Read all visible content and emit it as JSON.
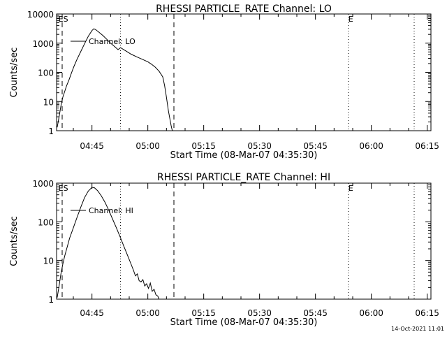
{
  "colors": {
    "background": "#ffffff",
    "ink": "#000000"
  },
  "footer": {
    "timestamp": "14-Oct-2021 11:01"
  },
  "chart_data": [
    {
      "type": "line",
      "title": "RHESSI PARTICLE_RATE Channel: LO",
      "xlabel": "Start Time (08-Mar-07 04:35:30)",
      "ylabel": "Counts/sec",
      "xlim": [
        "04:35:30",
        "06:16:00"
      ],
      "y_scale": "log",
      "ylim": [
        1,
        10000
      ],
      "x_ticks": [
        "04:45",
        "05:00",
        "05:15",
        "05:30",
        "05:45",
        "06:00",
        "06:15"
      ],
      "y_ticks": [
        "1",
        "10",
        "100",
        "1000",
        "10000"
      ],
      "grid": false,
      "legend": "top-left",
      "markers": {
        "dashed": [
          "04:37:00",
          "05:07:00"
        ],
        "dotted": [
          "04:52:40",
          "05:53:50",
          "06:11:30"
        ],
        "labels": [
          {
            "text": "ES",
            "time": "04:36:00"
          },
          {
            "text": "E",
            "time": "05:53:50"
          }
        ]
      },
      "series": [
        {
          "name": "Channel: LO",
          "x": [
            "04:35:40",
            "04:36:10",
            "04:36:40",
            "04:37:10",
            "04:37:40",
            "04:38:10",
            "04:38:50",
            "04:39:30",
            "04:40:10",
            "04:41:00",
            "04:42:00",
            "04:43:00",
            "04:44:00",
            "04:45:00",
            "04:45:30",
            "04:46:00",
            "04:47:00",
            "04:48:00",
            "04:49:00",
            "04:50:00",
            "04:51:00",
            "04:52:00",
            "04:52:40",
            "04:54:00",
            "04:55:30",
            "04:57:00",
            "04:58:30",
            "05:00:00",
            "05:01:00",
            "05:02:00",
            "05:03:00",
            "05:04:00",
            "05:04:30",
            "05:05:00",
            "05:05:30",
            "05:06:00",
            "05:06:15",
            "05:06:30",
            "05:06:40"
          ],
          "y": [
            1.3,
            3,
            7,
            14,
            22,
            34,
            55,
            95,
            160,
            280,
            520,
            950,
            1700,
            2700,
            3100,
            2900,
            2300,
            1800,
            1350,
            1000,
            780,
            600,
            700,
            550,
            420,
            340,
            280,
            230,
            190,
            150,
            110,
            70,
            35,
            14,
            5,
            2.2,
            1.5,
            1.1,
            1
          ]
        }
      ]
    },
    {
      "type": "line",
      "title": "RHESSI PARTICLE_RATE Channel: HI",
      "xlabel": "Start Time (08-Mar-07 04:35:30)",
      "ylabel": "Counts/sec",
      "xlim": [
        "04:35:30",
        "06:16:00"
      ],
      "y_scale": "log",
      "ylim": [
        1,
        1000
      ],
      "x_ticks": [
        "04:45",
        "05:00",
        "05:15",
        "05:30",
        "05:45",
        "06:00",
        "06:15"
      ],
      "y_ticks": [
        "1",
        "10",
        "100",
        "1000"
      ],
      "grid": false,
      "legend": "top-left",
      "markers": {
        "dashed": [
          "04:37:00",
          "05:07:00"
        ],
        "dotted": [
          "04:52:40",
          "05:53:50",
          "06:11:30"
        ],
        "labels": [
          {
            "text": "ES",
            "time": "04:36:00"
          },
          {
            "text": "E",
            "time": "05:53:50"
          }
        ]
      },
      "series": [
        {
          "name": "Channel: HI",
          "x": [
            "04:35:40",
            "04:36:10",
            "04:36:40",
            "04:37:10",
            "04:37:40",
            "04:38:20",
            "04:39:00",
            "04:40:00",
            "04:41:00",
            "04:42:00",
            "04:43:00",
            "04:44:00",
            "04:45:00",
            "04:45:40",
            "04:46:30",
            "04:47:30",
            "04:48:30",
            "04:49:30",
            "04:50:30",
            "04:51:30",
            "04:52:30",
            "04:53:30",
            "04:54:30",
            "04:55:30",
            "04:56:10",
            "04:56:40",
            "04:57:10",
            "04:57:40",
            "04:58:10",
            "04:58:40",
            "04:59:10",
            "04:59:40",
            "05:00:10",
            "05:00:40",
            "05:01:10",
            "05:01:40",
            "05:02:10",
            "05:02:40",
            "05:03:00"
          ],
          "y": [
            1.1,
            2.2,
            4.5,
            8,
            13,
            22,
            38,
            70,
            130,
            240,
            420,
            620,
            780,
            760,
            640,
            470,
            320,
            200,
            120,
            72,
            42,
            24,
            14,
            8,
            5.5,
            4,
            4.5,
            3,
            2.8,
            3.2,
            2.2,
            2.5,
            1.9,
            2.6,
            1.6,
            1.8,
            1.3,
            1.2,
            1
          ]
        }
      ]
    }
  ]
}
